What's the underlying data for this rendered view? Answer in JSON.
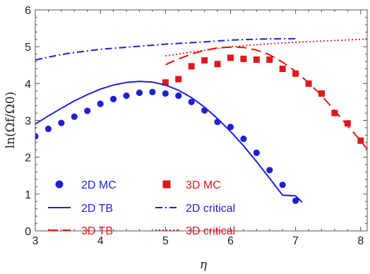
{
  "chart_data": {
    "type": "line",
    "title": "",
    "xlabel": "η",
    "ylabel": "ln(Ωf/Ω0)",
    "xlim": [
      3,
      8.1
    ],
    "ylim": [
      0,
      6
    ],
    "xticks": [
      3,
      4,
      5,
      6,
      7,
      8
    ],
    "yticks": [
      0,
      1,
      2,
      3,
      4,
      5,
      6
    ],
    "grid": false,
    "legend": "bottom-left",
    "colors": {
      "blue": "#1f1fd6",
      "red": "#e01818"
    },
    "series": [
      {
        "name": "2D MC",
        "style": "dots",
        "color": "#1f1fd6",
        "x": [
          3.0,
          3.2,
          3.4,
          3.6,
          3.8,
          4.0,
          4.2,
          4.4,
          4.6,
          4.8,
          5.0,
          5.2,
          5.4,
          5.6,
          5.8,
          6.0,
          6.2,
          6.4,
          6.6,
          6.8,
          7.0
        ],
        "y": [
          2.57,
          2.77,
          2.93,
          3.1,
          3.26,
          3.45,
          3.58,
          3.67,
          3.75,
          3.77,
          3.73,
          3.67,
          3.5,
          3.27,
          2.96,
          2.82,
          2.5,
          2.12,
          1.65,
          1.25,
          0.82
        ]
      },
      {
        "name": "3D MC",
        "style": "squares",
        "color": "#e01818",
        "x": [
          5.0,
          5.2,
          5.4,
          5.6,
          5.8,
          6.0,
          6.2,
          6.4,
          6.6,
          6.8,
          7.0,
          7.2,
          7.4,
          7.6,
          7.8,
          8.0
        ],
        "y": [
          4.03,
          4.12,
          4.47,
          4.63,
          4.53,
          4.7,
          4.67,
          4.65,
          4.65,
          4.4,
          4.27,
          4.0,
          3.73,
          3.2,
          2.92,
          2.45
        ]
      },
      {
        "name": "2D TB",
        "style": "solid",
        "color": "#1f1fd6",
        "x": [
          3.0,
          3.2,
          3.4,
          3.6,
          3.8,
          4.0,
          4.2,
          4.4,
          4.6,
          4.8,
          5.0,
          5.2,
          5.4,
          5.6,
          5.8,
          6.0,
          6.2,
          6.4,
          6.6,
          6.8,
          7.0,
          7.1
        ],
        "y": [
          2.9,
          3.12,
          3.33,
          3.53,
          3.7,
          3.85,
          3.96,
          4.03,
          4.06,
          4.04,
          3.96,
          3.82,
          3.62,
          3.36,
          3.05,
          2.7,
          2.31,
          1.88,
          1.43,
          0.97,
          0.95,
          0.78
        ]
      },
      {
        "name": "2D critical",
        "style": "dashdot",
        "color": "#1f1fd6",
        "x": [
          3.0,
          3.2,
          3.5,
          4.0,
          4.5,
          5.0,
          5.5,
          6.0,
          6.5,
          7.0
        ],
        "y": [
          4.64,
          4.72,
          4.82,
          4.93,
          5.0,
          5.07,
          5.12,
          5.18,
          5.21,
          5.22
        ]
      },
      {
        "name": "3D TB",
        "style": "dashed",
        "color": "#e01818",
        "x": [
          5.0,
          5.2,
          5.4,
          5.6,
          5.8,
          6.0,
          6.2,
          6.4,
          6.6,
          6.8,
          7.0,
          7.2,
          7.4,
          7.6,
          7.8,
          8.0,
          8.1
        ],
        "y": [
          4.51,
          4.67,
          4.8,
          4.9,
          4.97,
          4.99,
          4.98,
          4.91,
          4.78,
          4.58,
          4.33,
          4.02,
          3.67,
          3.27,
          2.85,
          2.45,
          2.22
        ]
      },
      {
        "name": "3D critical",
        "style": "dotted",
        "color": "#e01818",
        "x": [
          5.0,
          5.5,
          6.0,
          6.5,
          7.0,
          7.5,
          8.0,
          8.1
        ],
        "y": [
          4.75,
          4.88,
          5.0,
          5.07,
          5.12,
          5.16,
          5.2,
          5.21
        ]
      }
    ]
  }
}
